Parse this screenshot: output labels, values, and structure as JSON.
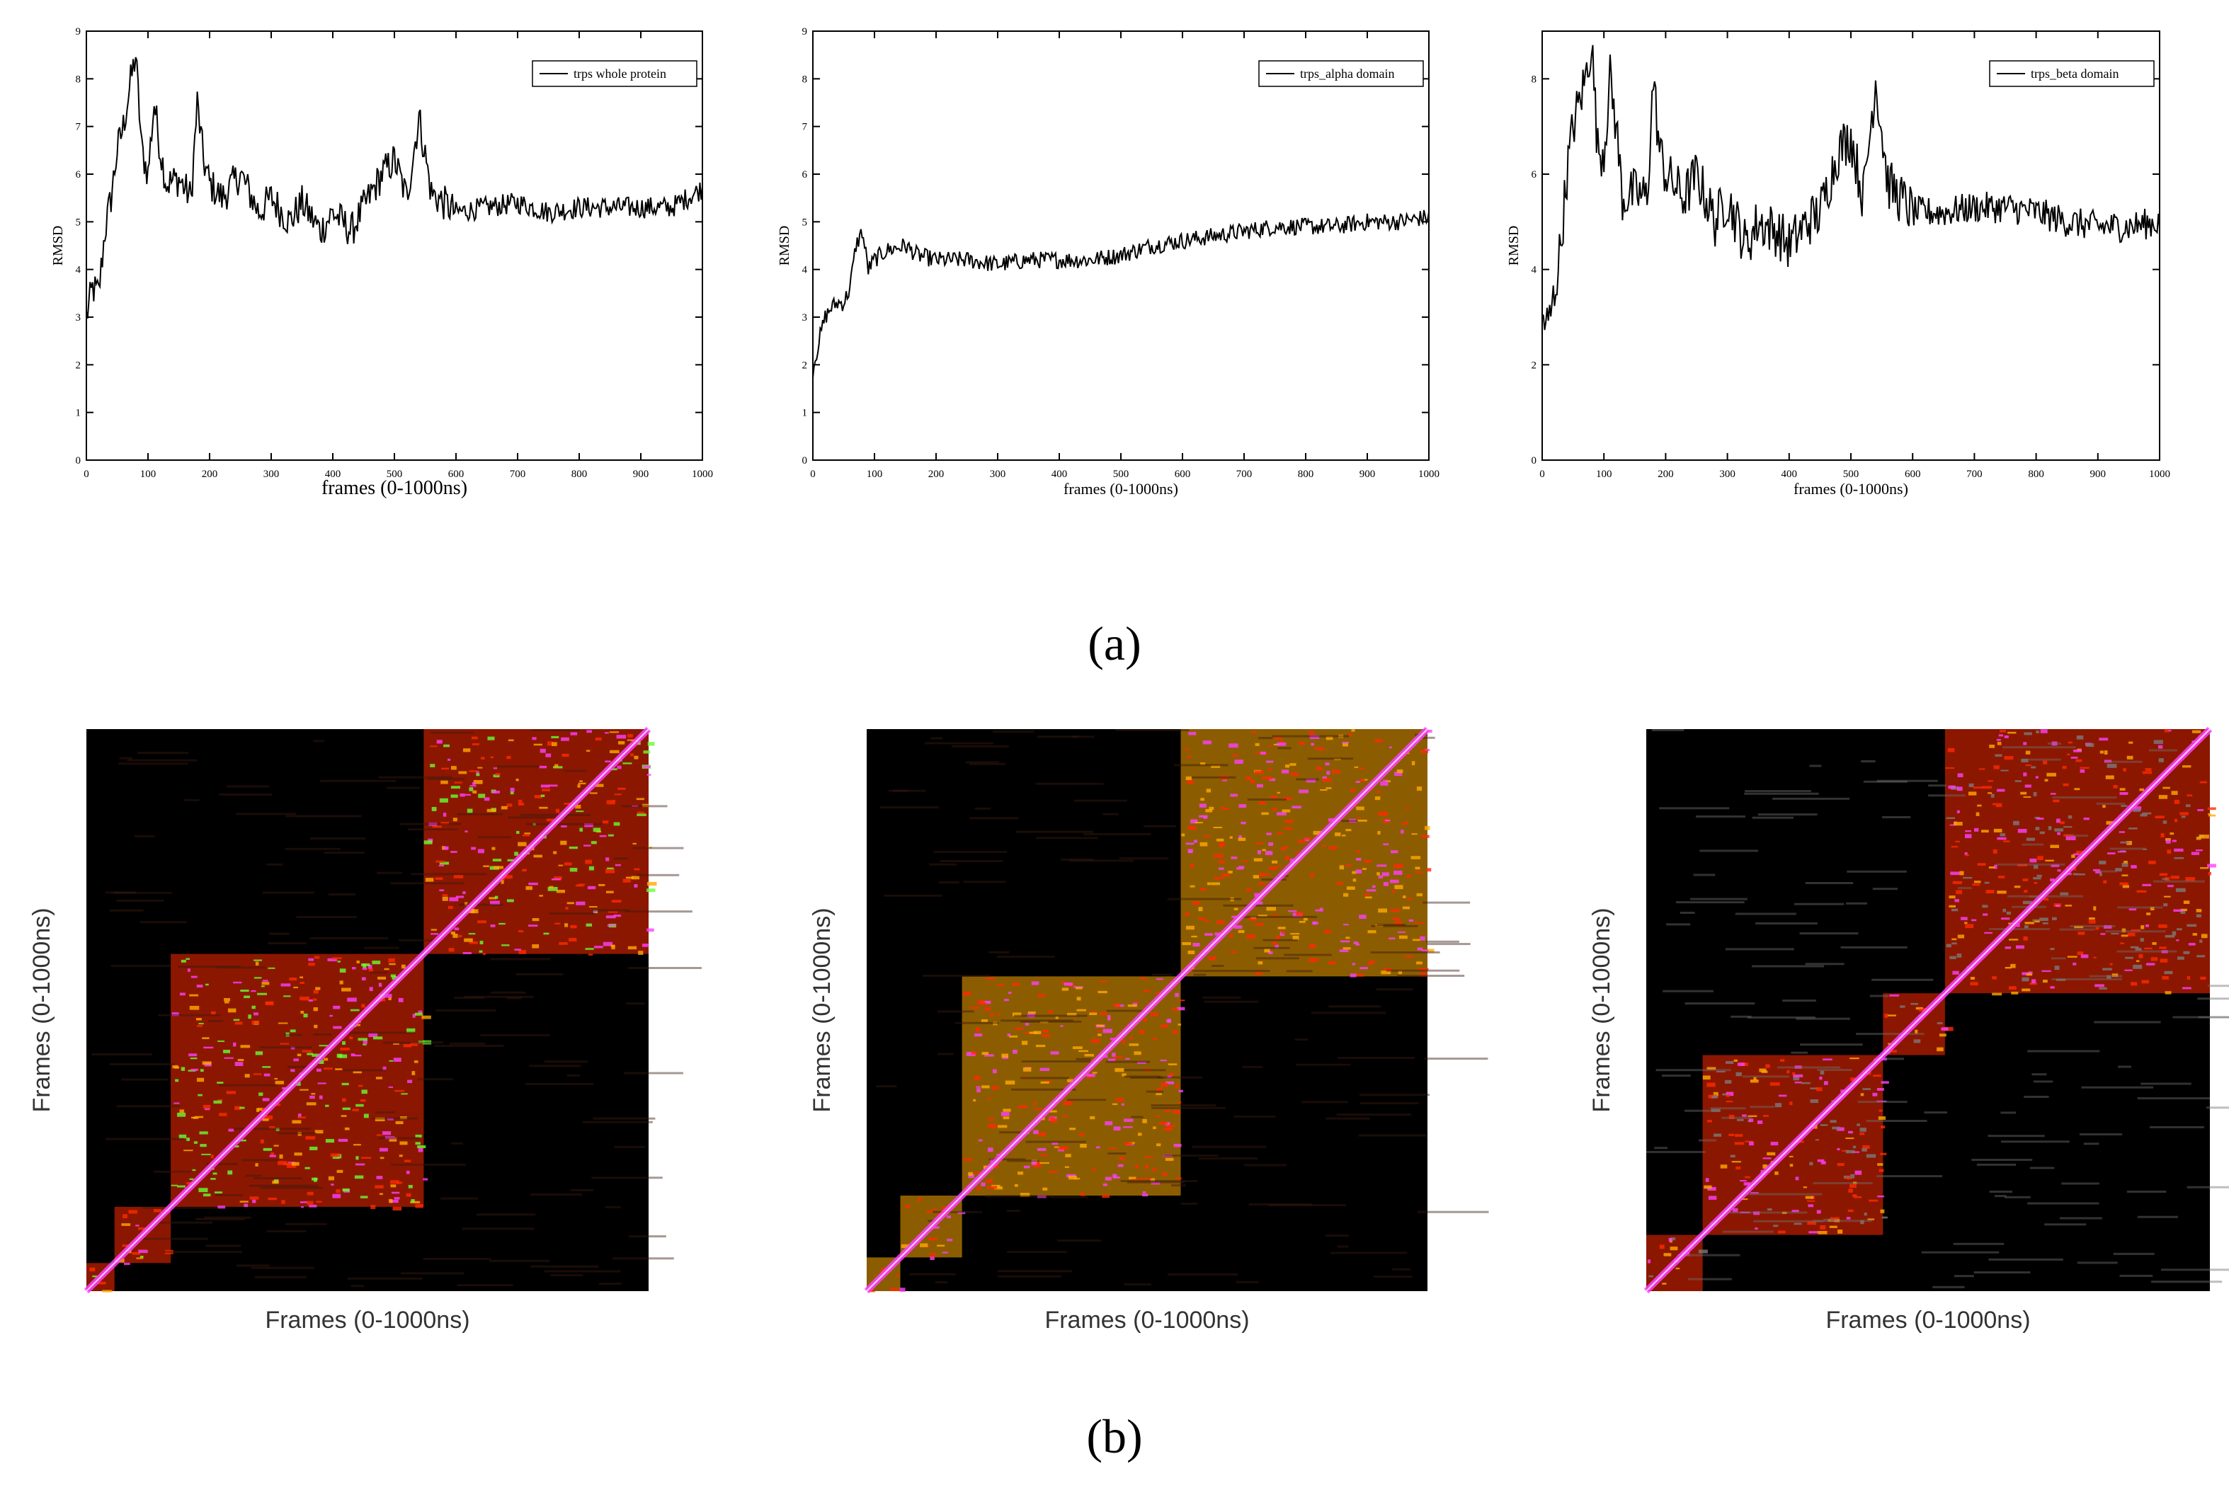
{
  "figure": {
    "panel_a_label": "(a)",
    "panel_b_label": "(b)"
  },
  "chart_data": [
    {
      "type": "line",
      "panel": "a",
      "xlabel": "frames (0-1000ns)",
      "ylabel": "RMSD",
      "xlim": [
        0,
        1000
      ],
      "ylim": [
        0,
        9
      ],
      "xticks": [
        0,
        100,
        200,
        300,
        400,
        500,
        600,
        700,
        800,
        900,
        1000
      ],
      "yticks": [
        0,
        1,
        2,
        3,
        4,
        5,
        6,
        7,
        8,
        9
      ],
      "legend": "top-right",
      "series": [
        {
          "name": "trps whole protein",
          "color": "#000000",
          "x": [
            0,
            10,
            20,
            30,
            40,
            50,
            60,
            70,
            80,
            90,
            100,
            110,
            120,
            130,
            150,
            170,
            180,
            190,
            200,
            220,
            250,
            280,
            300,
            330,
            350,
            380,
            400,
            430,
            450,
            480,
            500,
            520,
            540,
            560,
            600,
            650,
            700,
            750,
            800,
            850,
            900,
            950,
            1000
          ],
          "y": [
            3.0,
            3.6,
            3.5,
            4.8,
            5.5,
            6.5,
            7.0,
            7.8,
            8.5,
            6.5,
            6.0,
            7.5,
            6.5,
            5.8,
            5.9,
            5.5,
            7.5,
            6.3,
            5.8,
            5.5,
            6.0,
            5.2,
            5.5,
            5.0,
            5.4,
            4.8,
            5.2,
            4.8,
            5.3,
            6.0,
            6.3,
            5.5,
            7.2,
            5.6,
            5.2,
            5.3,
            5.4,
            5.2,
            5.3,
            5.3,
            5.3,
            5.3,
            5.7
          ]
        }
      ]
    },
    {
      "type": "line",
      "panel": "a",
      "xlabel": "frames (0-1000ns)",
      "ylabel": "RMSD",
      "xlim": [
        0,
        1000
      ],
      "ylim": [
        0,
        9
      ],
      "xticks": [
        0,
        100,
        200,
        300,
        400,
        500,
        600,
        700,
        800,
        900,
        1000
      ],
      "yticks": [
        0,
        1,
        2,
        3,
        4,
        5,
        6,
        7,
        8,
        9
      ],
      "legend": "top-right",
      "series": [
        {
          "name": "trps_alpha domain",
          "color": "#000000",
          "x": [
            0,
            10,
            20,
            30,
            40,
            50,
            60,
            70,
            80,
            90,
            100,
            120,
            150,
            170,
            200,
            250,
            300,
            350,
            400,
            450,
            500,
            550,
            600,
            650,
            700,
            750,
            800,
            850,
            900,
            950,
            1000
          ],
          "y": [
            1.9,
            2.5,
            3.0,
            3.2,
            3.3,
            3.3,
            3.6,
            4.5,
            4.8,
            4.0,
            4.2,
            4.4,
            4.5,
            4.3,
            4.2,
            4.2,
            4.1,
            4.2,
            4.2,
            4.2,
            4.3,
            4.5,
            4.6,
            4.7,
            4.8,
            4.9,
            4.9,
            4.9,
            5.0,
            5.0,
            5.1
          ]
        }
      ]
    },
    {
      "type": "line",
      "panel": "a",
      "xlabel": "frames (0-1000ns)",
      "ylabel": "RMSD",
      "xlim": [
        0,
        1000
      ],
      "ylim": [
        0,
        9
      ],
      "xticks": [
        0,
        100,
        200,
        300,
        400,
        500,
        600,
        700,
        800,
        900,
        1000
      ],
      "yticks": [
        0,
        2,
        4,
        6,
        8
      ],
      "legend": "top-right",
      "series": [
        {
          "name": "trps_beta domain",
          "color": "#000000",
          "x": [
            0,
            10,
            20,
            30,
            40,
            50,
            60,
            70,
            80,
            90,
            100,
            110,
            120,
            130,
            150,
            170,
            180,
            190,
            200,
            230,
            250,
            280,
            300,
            330,
            350,
            380,
            400,
            430,
            450,
            480,
            500,
            520,
            540,
            560,
            600,
            650,
            700,
            750,
            800,
            850,
            900,
            950,
            1000
          ],
          "y": [
            3.0,
            2.8,
            3.5,
            4.5,
            6.0,
            7.0,
            7.5,
            8.0,
            8.8,
            6.5,
            6.5,
            8.0,
            7.0,
            5.5,
            5.6,
            5.5,
            8.0,
            6.5,
            6.0,
            5.5,
            6.0,
            5.0,
            5.5,
            4.5,
            5.0,
            4.8,
            4.5,
            5.0,
            5.2,
            6.5,
            6.8,
            5.5,
            8.0,
            5.8,
            5.2,
            5.2,
            5.3,
            5.3,
            5.2,
            5.0,
            4.9,
            4.9,
            5.0
          ]
        }
      ]
    },
    {
      "type": "heatmap",
      "panel": "b",
      "xlabel": "Frames (0-1000ns)",
      "ylabel": "Frames (0-1000ns)",
      "colors": [
        "#000000",
        "#ff2a00",
        "#ffaa00",
        "#ff40ff",
        "#66ff33"
      ],
      "clusters": [
        [
          0,
          50
        ],
        [
          50,
          150
        ],
        [
          150,
          600
        ],
        [
          600,
          1000
        ]
      ],
      "dominant": "#ff2a00"
    },
    {
      "type": "heatmap",
      "panel": "b",
      "xlabel": "Frames (0-1000ns)",
      "ylabel": "Frames (0-1000ns)",
      "colors": [
        "#000000",
        "#ff2a00",
        "#ffaa00",
        "#ff40ff"
      ],
      "clusters": [
        [
          0,
          60
        ],
        [
          60,
          170
        ],
        [
          170,
          560
        ],
        [
          560,
          1000
        ]
      ],
      "dominant": "#ffaa00"
    },
    {
      "type": "heatmap",
      "panel": "b",
      "xlabel": "Frames (0-1000ns)",
      "ylabel": "Frames (0-1000ns)",
      "colors": [
        "#000000",
        "#7a7a7a",
        "#ff2a00",
        "#ffaa00",
        "#ff40ff"
      ],
      "clusters": [
        [
          0,
          100
        ],
        [
          100,
          420
        ],
        [
          420,
          530
        ],
        [
          530,
          1000
        ]
      ],
      "dominant": "#ff2a00"
    }
  ]
}
